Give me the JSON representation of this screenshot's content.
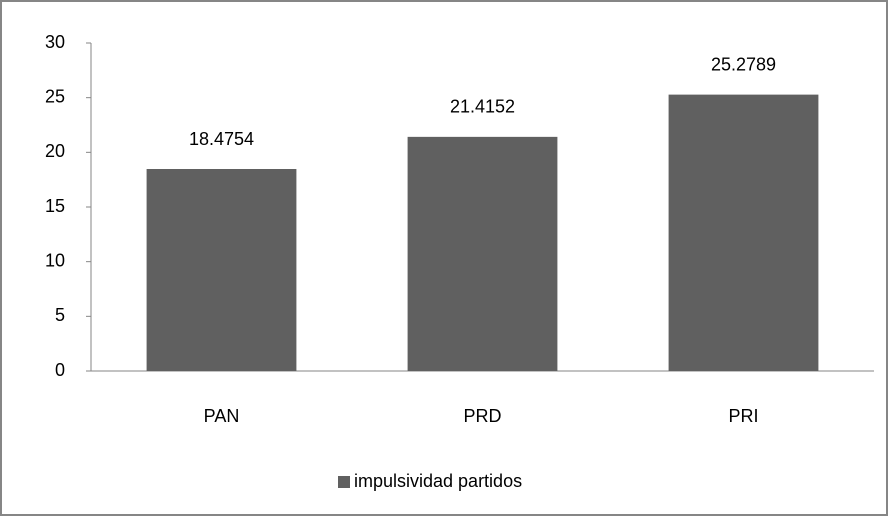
{
  "chart_data": {
    "type": "bar",
    "categories": [
      "PAN",
      "PRD",
      "PRI"
    ],
    "series": [
      {
        "name": "impulsividad partidos",
        "color": "#606060",
        "values": [
          18.4754,
          21.4152,
          25.2789
        ]
      }
    ],
    "ylim": [
      0,
      30
    ],
    "yticks": [
      0,
      5,
      10,
      15,
      20,
      25,
      30
    ],
    "grid": false,
    "legend": "bottom"
  }
}
